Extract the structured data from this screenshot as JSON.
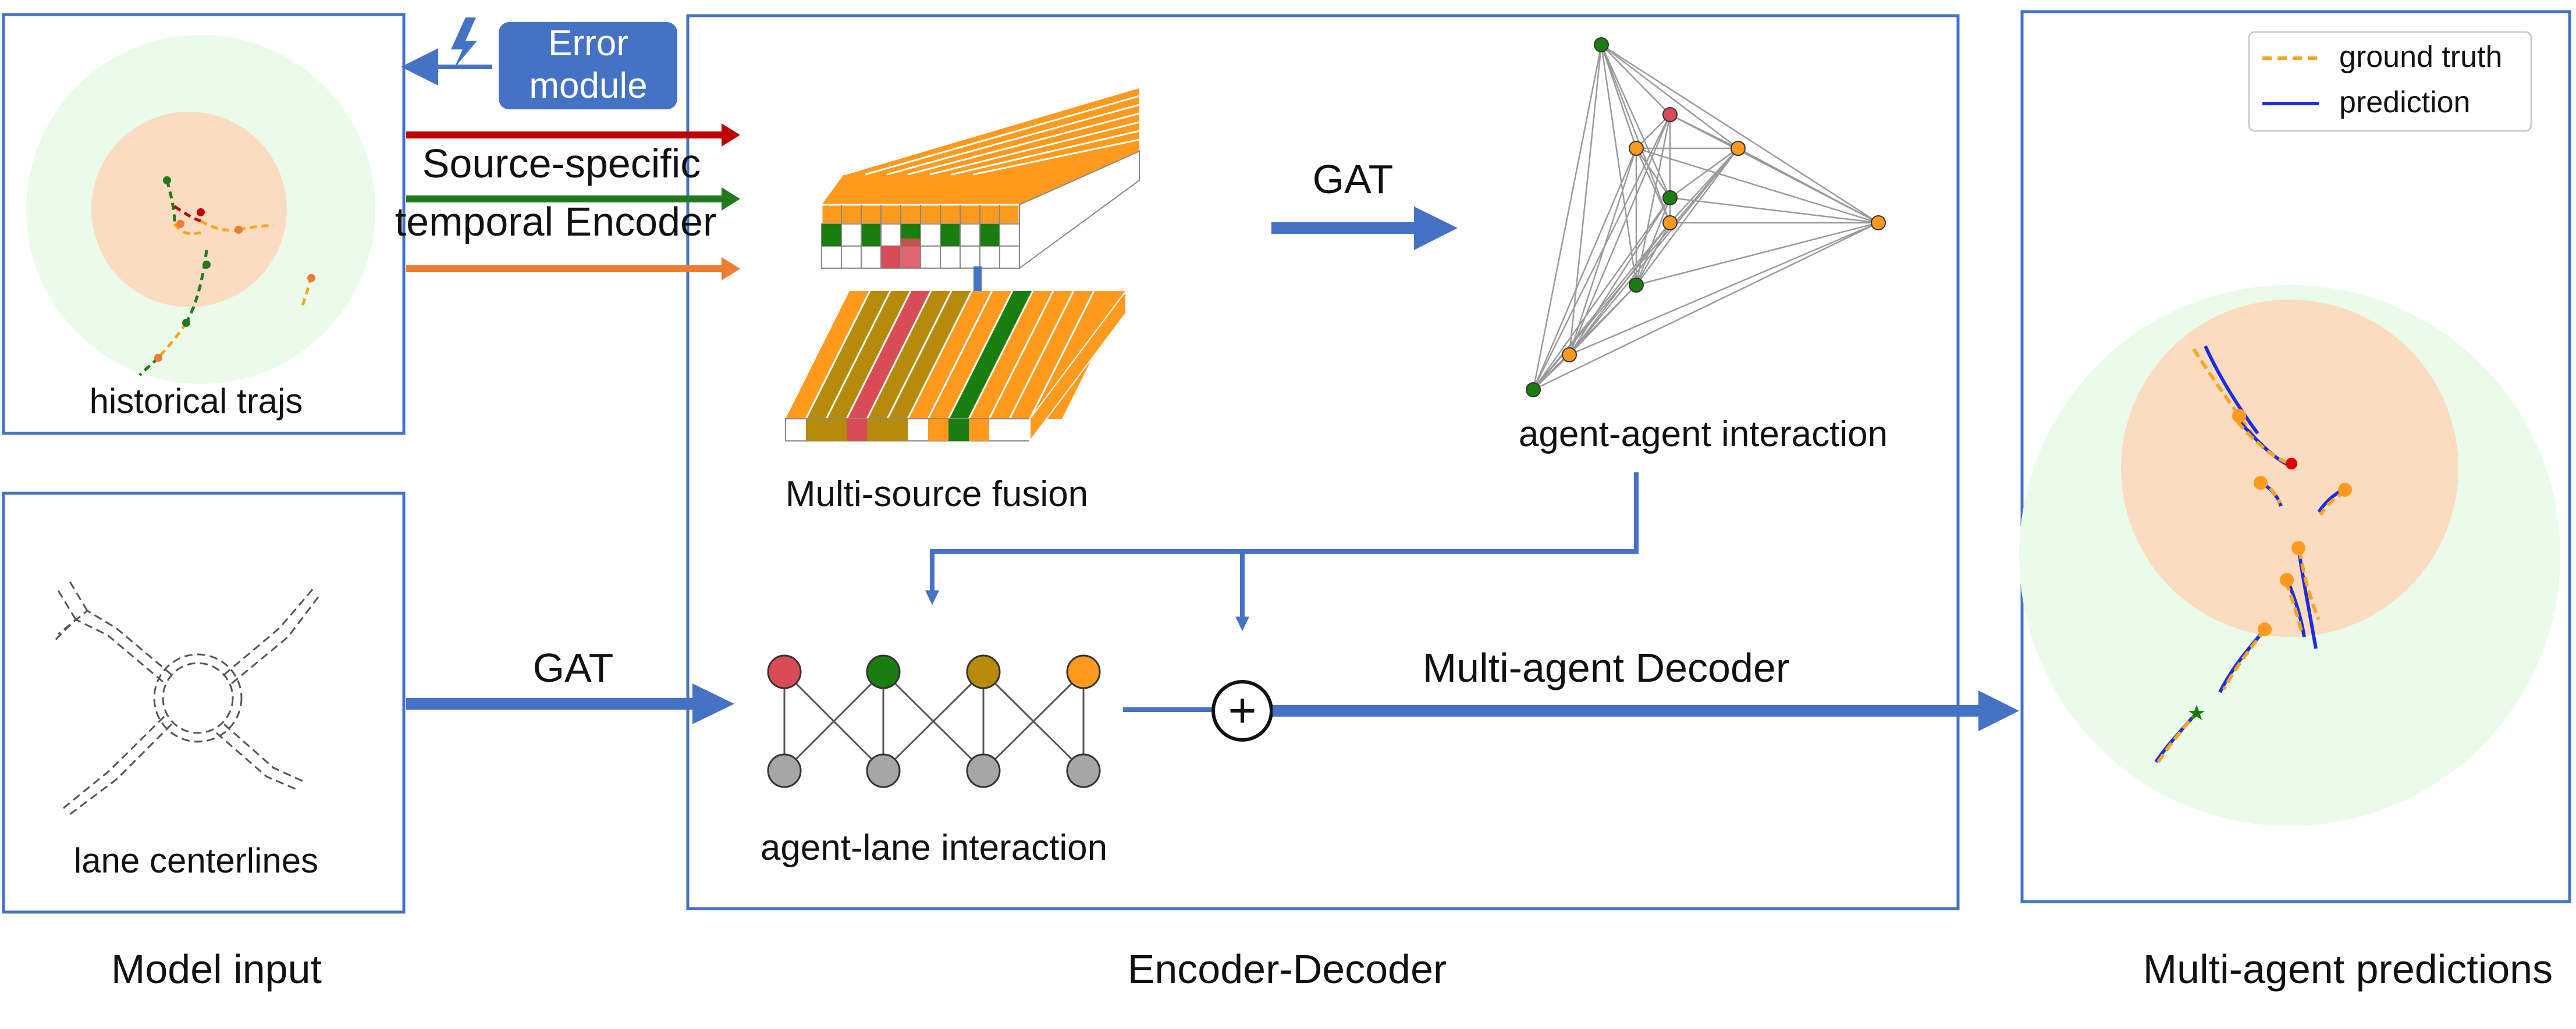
{
  "labels": {
    "error_line1": "Error",
    "error_line2": "module",
    "encoder_line1": "Source-specific",
    "encoder_line2": "temporal Encoder",
    "historical": "historical trajs",
    "lane": "lane centerlines",
    "fusion": "Multi-source fusion",
    "gat_top": "GAT",
    "gat_bottom": "GAT",
    "agent_agent": "agent-agent interaction",
    "agent_lane": "agent-lane interaction",
    "decoder": "Multi-agent Decoder",
    "plus": "+"
  },
  "captions": {
    "model_input": "Model input",
    "encoder_decoder": "Encoder-Decoder",
    "predictions": "Multi-agent predictions"
  },
  "legend": {
    "ground_truth": "ground truth",
    "prediction": "prediction"
  },
  "colors": {
    "frame": "#4472c4",
    "arrow": "#4472c4",
    "error_box": "#4472c4",
    "red_source": "#c00000",
    "green_source": "#217a1b",
    "orange_source": "#ed7d31",
    "grid_orange": "#ff9a1f",
    "grid_green": "#1a7d10",
    "grid_red": "#d94b57",
    "grid_olive": "#b68a0b",
    "outer_circle": "#eafbea",
    "inner_circle": "#fbdcc0",
    "gt_dash": "#f5a623",
    "pred_line": "#1c2ee0",
    "node_gray": "#a6a6a6"
  }
}
